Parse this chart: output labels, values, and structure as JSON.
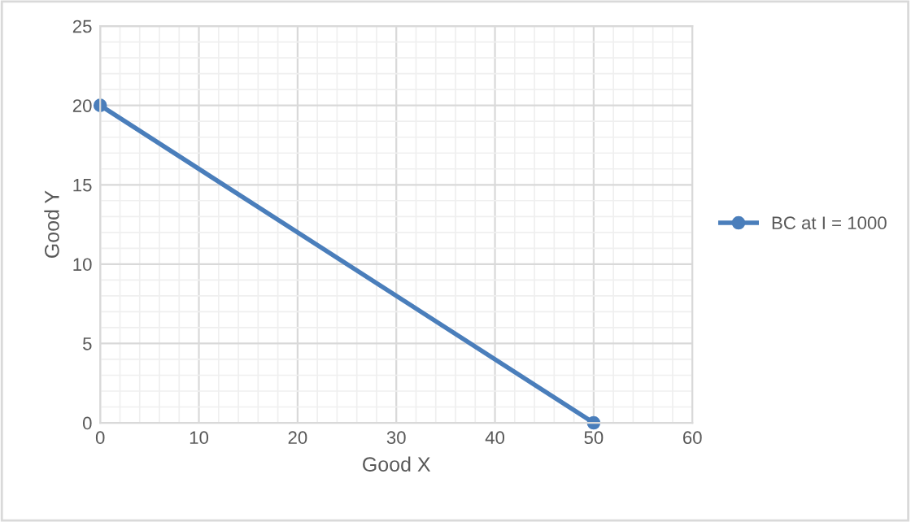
{
  "chart_data": {
    "type": "line",
    "xlabel": "Good X",
    "ylabel": "Good Y",
    "x": [
      0,
      50
    ],
    "series": [
      {
        "name": "BC at I = 1000",
        "color": "#4a7ebb",
        "values": [
          20,
          0
        ]
      }
    ],
    "xlim": [
      0,
      60
    ],
    "ylim": [
      0,
      25
    ],
    "xticks": [
      0,
      10,
      20,
      30,
      40,
      50,
      60
    ],
    "yticks": [
      0,
      5,
      10,
      15,
      20,
      25
    ],
    "grid": true,
    "legend": "right",
    "marker": "circle",
    "line_style": "solid"
  }
}
